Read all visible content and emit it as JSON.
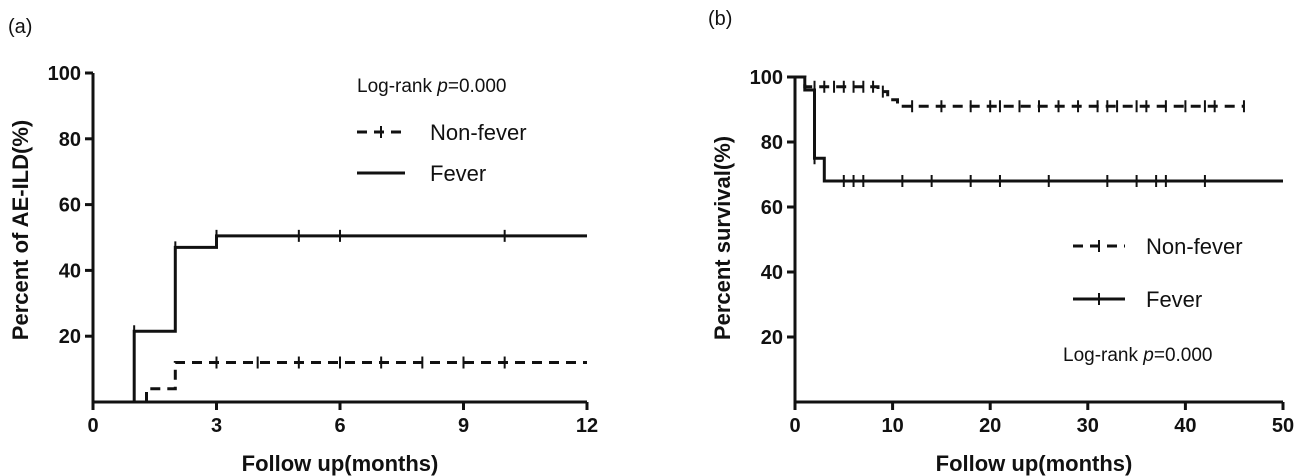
{
  "chart_data": [
    {
      "type": "line",
      "panel_label": "(a)",
      "xlabel": "Follow up(months)",
      "ylabel": "Percent of AE-ILD(%)",
      "xlim": [
        0,
        12
      ],
      "ylim": [
        0,
        100
      ],
      "x_ticks": [
        "0",
        "3",
        "6",
        "9",
        "12"
      ],
      "y_ticks": [
        "20",
        "40",
        "60",
        "80",
        "100"
      ],
      "x_tick_values": [
        0,
        3,
        6,
        9,
        12
      ],
      "y_tick_values": [
        20,
        40,
        60,
        80,
        100
      ],
      "annotation": {
        "prefix": "Log-rank ",
        "italic": "p",
        "suffix": "=0.000"
      },
      "annotation_position": "top-right",
      "legend_position": "top-right",
      "series": [
        {
          "name": "Non-fever",
          "style": "dashed",
          "step_points": [
            [
              1.3,
              0
            ],
            [
              1.3,
              4
            ],
            [
              2,
              4
            ],
            [
              2,
              12
            ],
            [
              12,
              12
            ]
          ],
          "censor_x": [
            3,
            4,
            5,
            6,
            7,
            8,
            9,
            10
          ]
        },
        {
          "name": "Fever",
          "style": "solid",
          "step_points": [
            [
              1,
              0
            ],
            [
              1,
              21.5
            ],
            [
              2,
              21.5
            ],
            [
              2,
              47
            ],
            [
              3,
              47
            ],
            [
              3,
              50.5
            ],
            [
              12,
              50.5
            ]
          ],
          "censor_x": [
            1,
            2,
            3,
            5,
            6,
            10
          ]
        }
      ]
    },
    {
      "type": "line",
      "panel_label": "(b)",
      "xlabel": "Follow up(months)",
      "ylabel": "Percent survival(%)",
      "xlim": [
        0,
        50
      ],
      "ylim": [
        0,
        100
      ],
      "x_ticks": [
        "0",
        "10",
        "20",
        "30",
        "40",
        "50"
      ],
      "y_ticks": [
        "20",
        "40",
        "60",
        "80",
        "100"
      ],
      "x_tick_values": [
        0,
        10,
        20,
        30,
        40,
        50
      ],
      "y_tick_values": [
        20,
        40,
        60,
        80,
        100
      ],
      "annotation": {
        "prefix": "Log-rank ",
        "italic": "p",
        "suffix": "=0.000"
      },
      "annotation_position": "bottom-right",
      "legend_position": "right",
      "series": [
        {
          "name": "Non-fever",
          "style": "dashed",
          "step_points": [
            [
              0,
              100
            ],
            [
              1,
              100
            ],
            [
              1,
              97
            ],
            [
              8.5,
              97
            ],
            [
              8.5,
              95.5
            ],
            [
              9.5,
              95.5
            ],
            [
              9.5,
              93
            ],
            [
              10.5,
              93
            ],
            [
              10.5,
              91
            ],
            [
              46,
              91
            ]
          ],
          "censor_x": [
            2,
            3,
            4,
            5,
            6,
            7,
            8,
            9,
            12,
            15,
            18,
            20,
            21,
            23,
            25,
            27,
            29,
            31,
            32,
            33,
            35,
            36,
            38,
            40,
            42,
            43,
            46
          ]
        },
        {
          "name": "Fever",
          "style": "solid",
          "step_points": [
            [
              0,
              100
            ],
            [
              1,
              100
            ],
            [
              1,
              96
            ],
            [
              2,
              96
            ],
            [
              2,
              75
            ],
            [
              3,
              75
            ],
            [
              3,
              68
            ],
            [
              50,
              68
            ]
          ],
          "censor_x": [
            2,
            5,
            6,
            7,
            11,
            14,
            18,
            21,
            26,
            32,
            35,
            37,
            38,
            42
          ]
        }
      ]
    }
  ]
}
